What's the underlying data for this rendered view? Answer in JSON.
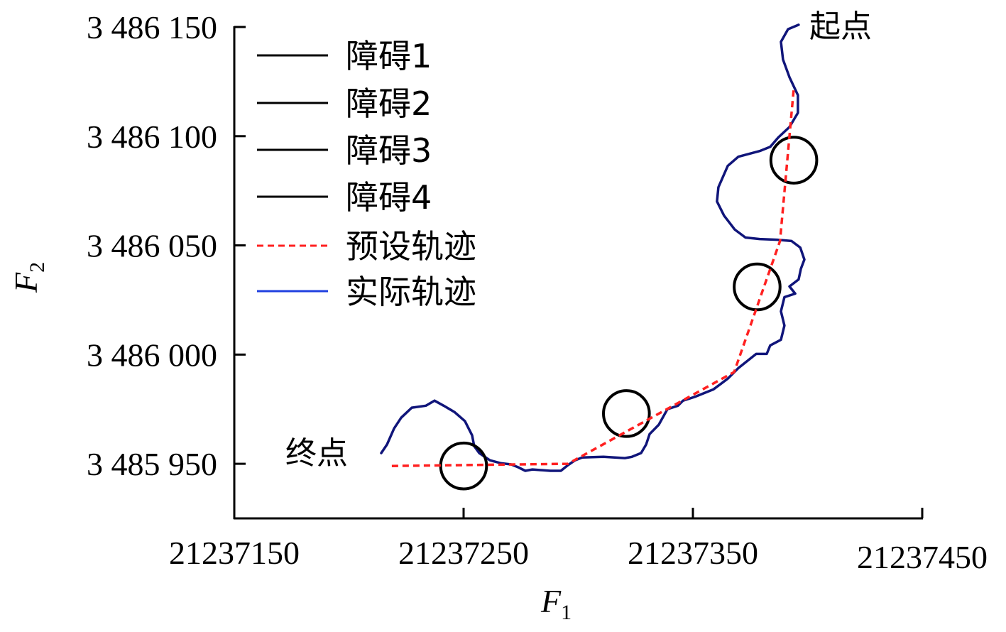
{
  "chart_data": {
    "type": "line",
    "xlabel": "F",
    "xlabel_sub": "1",
    "ylabel": "F",
    "ylabel_sub": "2",
    "xlim": [
      21237150,
      21237450
    ],
    "ylim": [
      3485925,
      3486150
    ],
    "grid": false,
    "legend_position": "top-left",
    "x_ticks": [
      {
        "value": 21237150,
        "label": "21237150"
      },
      {
        "value": 21237250,
        "label": "21237250"
      },
      {
        "value": 21237350,
        "label": "21237350"
      },
      {
        "value": 21237450,
        "label": "21237450"
      }
    ],
    "y_ticks": [
      {
        "value": 3486150,
        "label": "3 486 150"
      },
      {
        "value": 3486100,
        "label": "3 486 100"
      },
      {
        "value": 3486050,
        "label": "3 486 050"
      },
      {
        "value": 3486000,
        "label": "3 486 000"
      },
      {
        "value": 3485950,
        "label": "3 485 950"
      }
    ],
    "obstacles": [
      {
        "name": "障碍1",
        "x": 21237250,
        "y": 3485949,
        "radius": 10,
        "color": "#000000"
      },
      {
        "name": "障碍2",
        "x": 21237321,
        "y": 3485973,
        "radius": 10,
        "color": "#000000"
      },
      {
        "name": "障碍3",
        "x": 21237378,
        "y": 3486031,
        "radius": 10,
        "color": "#000000"
      },
      {
        "name": "障碍4",
        "x": 21237394,
        "y": 3486089,
        "radius": 10,
        "color": "#000000"
      }
    ],
    "series": [
      {
        "name": "预设轨迹",
        "color": "#ff2020",
        "style": "dashed",
        "legend_color": "#ff2020",
        "points": [
          [
            21237218.7,
            3485949.0
          ],
          [
            21237295.5,
            3485950.0
          ],
          [
            21237368.0,
            3485992.0
          ],
          [
            21237388.0,
            3486052.0
          ],
          [
            21237394.0,
            3486122.0
          ]
        ]
      },
      {
        "name": "实际轨迹",
        "color": "#10157a",
        "legend_color": "#2040e0",
        "style": "solid",
        "points": [
          [
            21237396.1,
            3486151.0
          ],
          [
            21237391.5,
            3486149.0
          ],
          [
            21237388.4,
            3486143.2
          ],
          [
            21237389.3,
            3486135.1
          ],
          [
            21237392.1,
            3486127.0
          ],
          [
            21237395.8,
            3486118.8
          ],
          [
            21237395.8,
            3486110.7
          ],
          [
            21237392.1,
            3486104.2
          ],
          [
            21237387.2,
            3486099.4
          ],
          [
            21237383.7,
            3486095.1
          ],
          [
            21237379.1,
            3486093.2
          ],
          [
            21237369.8,
            3486090.6
          ],
          [
            21237365.2,
            3486086.4
          ],
          [
            21237361.1,
            3486076.6
          ],
          [
            21237360.5,
            3486070.1
          ],
          [
            21237363.6,
            3486063.6
          ],
          [
            21237368.3,
            3486057.2
          ],
          [
            21237372.9,
            3486053.6
          ],
          [
            21237379.1,
            3486052.9
          ],
          [
            21237386.8,
            3486052.6
          ],
          [
            21237393.0,
            3486052.0
          ],
          [
            21237396.8,
            3486049.0
          ],
          [
            21237398.6,
            3486043.5
          ],
          [
            21237397.1,
            3486039.3
          ],
          [
            21237396.1,
            3486034.4
          ],
          [
            21237392.1,
            3486031.2
          ],
          [
            21237394.6,
            3486027.9
          ],
          [
            21237389.9,
            3486026.3
          ],
          [
            21237388.4,
            3486019.8
          ],
          [
            21237389.9,
            3486013.3
          ],
          [
            21237388.4,
            3486006.8
          ],
          [
            21237383.7,
            3486004.2
          ],
          [
            21237382.2,
            3486000.3
          ],
          [
            21237377.6,
            3486000.3
          ],
          [
            21237372.9,
            3485996.4
          ],
          [
            21237369.8,
            3485993.8
          ],
          [
            21237365.2,
            3485989.0
          ],
          [
            21237359.0,
            3485984.1
          ],
          [
            21237351.2,
            3485980.8
          ],
          [
            21237345.7,
            3485978.9
          ],
          [
            21237343.5,
            3485976.6
          ],
          [
            21237338.9,
            3485975.0
          ],
          [
            21237335.1,
            3485967.9
          ],
          [
            21237331.1,
            3485963.6
          ],
          [
            21237329.6,
            3485958.8
          ],
          [
            21237327.4,
            3485954.9
          ],
          [
            21237323.4,
            3485953.2
          ],
          [
            21237320.3,
            3485952.6
          ],
          [
            21237311.0,
            3485953.2
          ],
          [
            21237301.7,
            3485952.9
          ],
          [
            21237298.6,
            3485951.6
          ],
          [
            21237295.5,
            3485949.4
          ],
          [
            21237292.4,
            3485946.8
          ],
          [
            21237287.8,
            3485946.8
          ],
          [
            21237280.0,
            3485947.4
          ],
          [
            21237276.9,
            3485946.8
          ],
          [
            21237273.8,
            3485948.4
          ],
          [
            21237270.7,
            3485949.7
          ],
          [
            21237266.1,
            3485950.3
          ],
          [
            21237261.5,
            3485951.6
          ],
          [
            21237256.8,
            3485954.9
          ],
          [
            21237254.6,
            3485958.1
          ],
          [
            21237253.7,
            3485963.0
          ],
          [
            21237250.6,
            3485969.5
          ],
          [
            21237246.0,
            3485973.7
          ],
          [
            21237241.3,
            3485976.6
          ],
          [
            21237237.3,
            3485978.9
          ],
          [
            21237233.6,
            3485976.6
          ],
          [
            21237227.4,
            3485975.7
          ],
          [
            21237222.8,
            3485971.1
          ],
          [
            21237219.7,
            3485966.2
          ],
          [
            21237216.6,
            3485958.8
          ],
          [
            21237214.1,
            3485954.9
          ]
        ]
      }
    ],
    "legend": [
      {
        "label": "障碍1",
        "color": "#000000",
        "style": "solid"
      },
      {
        "label": "障碍2",
        "color": "#000000",
        "style": "solid"
      },
      {
        "label": "障碍3",
        "color": "#000000",
        "style": "solid"
      },
      {
        "label": "障碍4",
        "color": "#000000",
        "style": "solid"
      },
      {
        "label": "预设轨迹",
        "color": "#ff2020",
        "style": "dashed"
      },
      {
        "label": "实际轨迹",
        "color": "#2040e0",
        "style": "solid"
      }
    ],
    "annotations": {
      "start": {
        "text": "起点",
        "x": 21237396,
        "y": 3486151
      },
      "end": {
        "text": "终点",
        "x": 21237214,
        "y": 3485955
      }
    }
  }
}
